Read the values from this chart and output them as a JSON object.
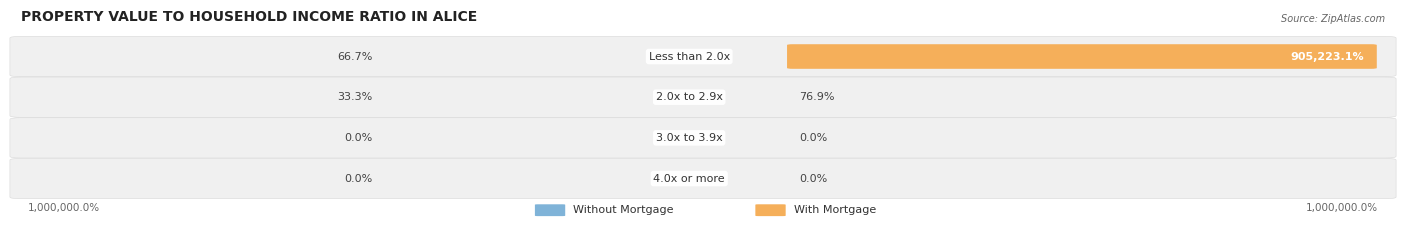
{
  "title": "PROPERTY VALUE TO HOUSEHOLD INCOME RATIO IN ALICE",
  "source": "Source: ZipAtlas.com",
  "categories": [
    "Less than 2.0x",
    "2.0x to 2.9x",
    "3.0x to 3.9x",
    "4.0x or more"
  ],
  "without_mortgage": [
    66.7,
    33.3,
    0.0,
    0.0
  ],
  "with_mortgage": [
    905223.1,
    76.9,
    0.0,
    0.0
  ],
  "left_labels": [
    "66.7%",
    "33.3%",
    "0.0%",
    "0.0%"
  ],
  "right_labels": [
    "905,223.1%",
    "76.9%",
    "0.0%",
    "0.0%"
  ],
  "right_label_inside": [
    true,
    false,
    false,
    false
  ],
  "x_left_label": "1,000,000.0%",
  "x_right_label": "1,000,000.0%",
  "color_without": "#7fb3d8",
  "color_with": "#f5af5a",
  "row_bg": "#f0f0f0",
  "title_fontsize": 10,
  "source_fontsize": 7,
  "label_fontsize": 8,
  "cat_fontsize": 8,
  "max_val": 905223.1
}
